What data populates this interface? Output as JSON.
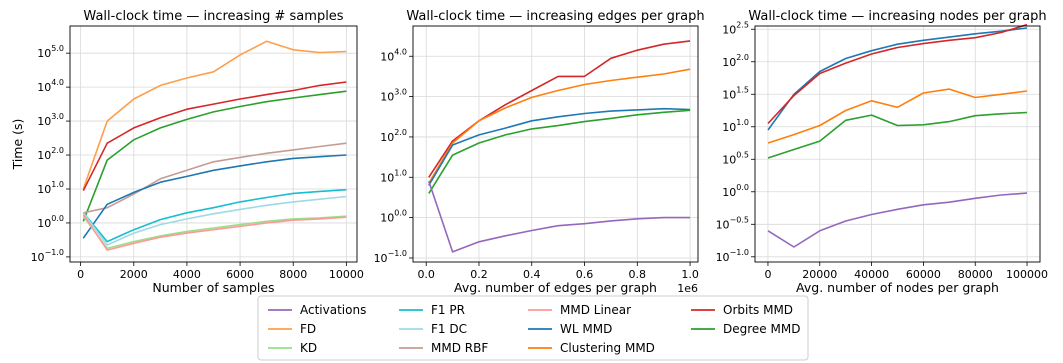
{
  "chart_data": [
    {
      "type": "line",
      "title": "Wall-clock time — increasing # samples",
      "xlabel": "Number of samples",
      "ylabel": "Time (s)",
      "xlim": [
        -400,
        10400
      ],
      "ylim_log10": [
        -1.15,
        5.8
      ],
      "yscale": "log",
      "grid": true,
      "x_ticks": [
        0,
        2000,
        4000,
        6000,
        8000,
        10000
      ],
      "x_tick_labels": [
        "0",
        "2000",
        "4000",
        "6000",
        "8000",
        "10000"
      ],
      "y_ticks_log10": [
        -1,
        0,
        1,
        2,
        3,
        4,
        5
      ],
      "y_tick_labels": [
        {
          "base": "10",
          "exp": "−1.0"
        },
        {
          "base": "10",
          "exp": "0.0"
        },
        {
          "base": "10",
          "exp": "1.0"
        },
        {
          "base": "10",
          "exp": "2.0"
        },
        {
          "base": "10",
          "exp": "3.0"
        },
        {
          "base": "10",
          "exp": "4.0"
        },
        {
          "base": "10",
          "exp": "5.0"
        }
      ],
      "x": [
        100,
        1000,
        2000,
        3000,
        4000,
        5000,
        6000,
        7000,
        8000,
        9000,
        10000
      ],
      "series": [
        {
          "name": "FD",
          "color": "#ff9e4a",
          "log10_values": [
            1.0,
            3.0,
            3.65,
            4.05,
            4.27,
            4.45,
            4.95,
            5.35,
            5.1,
            5.02,
            5.05
          ]
        },
        {
          "name": "Orbits MMD",
          "color": "#d62728",
          "log10_values": [
            0.95,
            2.35,
            2.8,
            3.1,
            3.35,
            3.5,
            3.65,
            3.78,
            3.9,
            4.05,
            4.15
          ]
        },
        {
          "name": "Degree MMD",
          "color": "#2ca02c",
          "log10_values": [
            0.05,
            1.85,
            2.45,
            2.8,
            3.05,
            3.27,
            3.43,
            3.57,
            3.68,
            3.78,
            3.88
          ]
        },
        {
          "name": "MMD RBF",
          "color": "#c49c94",
          "log10_values": [
            0.3,
            0.45,
            0.85,
            1.3,
            1.55,
            1.8,
            1.93,
            2.05,
            2.15,
            2.25,
            2.35
          ]
        },
        {
          "name": "WL MMD",
          "color": "#1f77b4",
          "log10_values": [
            -0.45,
            0.55,
            0.9,
            1.2,
            1.37,
            1.55,
            1.68,
            1.8,
            1.9,
            1.95,
            2.0
          ]
        },
        {
          "name": "F1 PR",
          "color": "#17becf",
          "log10_values": [
            0.3,
            -0.55,
            -0.2,
            0.1,
            0.3,
            0.45,
            0.62,
            0.75,
            0.87,
            0.93,
            0.98
          ]
        },
        {
          "name": "F1 DC",
          "color": "#9edae5",
          "log10_values": [
            0.3,
            -0.65,
            -0.3,
            -0.05,
            0.12,
            0.27,
            0.4,
            0.52,
            0.62,
            0.7,
            0.78
          ]
        },
        {
          "name": "KD",
          "color": "#98df8a",
          "log10_values": [
            0.2,
            -0.75,
            -0.55,
            -0.38,
            -0.25,
            -0.15,
            -0.05,
            0.05,
            0.12,
            0.15,
            0.2
          ]
        },
        {
          "name": "MMD Linear",
          "color": "#ff9896",
          "log10_values": [
            0.25,
            -0.8,
            -0.6,
            -0.42,
            -0.3,
            -0.2,
            -0.1,
            0.0,
            0.08,
            0.12,
            0.17
          ]
        }
      ]
    },
    {
      "type": "line",
      "title": "Wall-clock time — increasing edges per graph",
      "xlabel": "Avg. number of edges per graph",
      "x_multiplier": "1e6",
      "ylabel": "",
      "xlim": [
        -0.05,
        1.03
      ],
      "ylim_log10": [
        -1.1,
        4.75
      ],
      "yscale": "log",
      "grid": true,
      "x_ticks": [
        0.0,
        0.2,
        0.4,
        0.6,
        0.8,
        1.0
      ],
      "x_tick_labels": [
        "0.0",
        "0.2",
        "0.4",
        "0.6",
        "0.8",
        "1.0"
      ],
      "y_ticks_log10": [
        -1,
        0,
        1,
        2,
        3,
        4
      ],
      "y_tick_labels": [
        {
          "base": "10",
          "exp": "−1.0"
        },
        {
          "base": "10",
          "exp": "0.0"
        },
        {
          "base": "10",
          "exp": "1.0"
        },
        {
          "base": "10",
          "exp": "2.0"
        },
        {
          "base": "10",
          "exp": "3.0"
        },
        {
          "base": "10",
          "exp": "4.0"
        }
      ],
      "x": [
        0.01,
        0.1,
        0.2,
        0.3,
        0.4,
        0.5,
        0.6,
        0.7,
        0.8,
        0.9,
        1.0
      ],
      "series": [
        {
          "name": "Orbits MMD",
          "color": "#d62728",
          "log10_values": [
            1.0,
            1.9,
            2.4,
            2.8,
            3.15,
            3.5,
            3.5,
            3.95,
            4.15,
            4.3,
            4.38
          ]
        },
        {
          "name": "Clustering MMD",
          "color": "#ff7f0e",
          "log10_values": [
            0.85,
            1.85,
            2.4,
            2.72,
            2.98,
            3.15,
            3.3,
            3.4,
            3.48,
            3.56,
            3.68
          ]
        },
        {
          "name": "WL MMD",
          "color": "#1f77b4",
          "log10_values": [
            0.8,
            1.8,
            2.05,
            2.22,
            2.4,
            2.5,
            2.58,
            2.64,
            2.67,
            2.7,
            2.68
          ]
        },
        {
          "name": "Degree MMD",
          "color": "#2ca02c",
          "log10_values": [
            0.6,
            1.55,
            1.85,
            2.05,
            2.2,
            2.28,
            2.38,
            2.46,
            2.55,
            2.61,
            2.66
          ]
        },
        {
          "name": "Activations",
          "color": "#9467bd",
          "log10_values": [
            0.9,
            -0.85,
            -0.6,
            -0.45,
            -0.32,
            -0.2,
            -0.15,
            -0.08,
            -0.03,
            0.0,
            0.0
          ]
        }
      ]
    },
    {
      "type": "line",
      "title": "Wall-clock time — increasing nodes per graph",
      "xlabel": "Avg. number of nodes per graph",
      "ylabel": "",
      "xlim": [
        -5000,
        105000
      ],
      "ylim_log10": [
        -1.08,
        2.55
      ],
      "yscale": "log",
      "grid": true,
      "x_ticks": [
        0,
        20000,
        40000,
        60000,
        80000,
        100000
      ],
      "x_tick_labels": [
        "0",
        "20000",
        "40000",
        "60000",
        "80000",
        "100000"
      ],
      "y_ticks_log10": [
        -1.0,
        -0.5,
        0.0,
        0.5,
        1.0,
        1.5,
        2.0,
        2.5
      ],
      "y_tick_labels": [
        {
          "base": "10",
          "exp": "−1.0"
        },
        {
          "base": "10",
          "exp": "−0.5"
        },
        {
          "base": "10",
          "exp": "0.0"
        },
        {
          "base": "10",
          "exp": "0.5"
        },
        {
          "base": "10",
          "exp": "1.0"
        },
        {
          "base": "10",
          "exp": "1.5"
        },
        {
          "base": "10",
          "exp": "2.0"
        },
        {
          "base": "10",
          "exp": "2.5"
        }
      ],
      "x": [
        0,
        10000,
        20000,
        30000,
        40000,
        50000,
        60000,
        70000,
        80000,
        90000,
        100000
      ],
      "series": [
        {
          "name": "WL MMD",
          "color": "#1f77b4",
          "log10_values": [
            0.95,
            1.5,
            1.85,
            2.05,
            2.17,
            2.27,
            2.33,
            2.38,
            2.43,
            2.47,
            2.52
          ]
        },
        {
          "name": "Orbits MMD",
          "color": "#d62728",
          "log10_values": [
            1.05,
            1.48,
            1.82,
            1.98,
            2.12,
            2.22,
            2.28,
            2.33,
            2.37,
            2.45,
            2.57
          ]
        },
        {
          "name": "Clustering MMD",
          "color": "#ff7f0e",
          "log10_values": [
            0.75,
            0.88,
            1.02,
            1.25,
            1.4,
            1.3,
            1.52,
            1.58,
            1.45,
            1.5,
            1.55
          ]
        },
        {
          "name": "Degree MMD",
          "color": "#2ca02c",
          "log10_values": [
            0.52,
            0.65,
            0.78,
            1.1,
            1.18,
            1.02,
            1.03,
            1.08,
            1.17,
            1.2,
            1.22
          ]
        },
        {
          "name": "Activations",
          "color": "#9467bd",
          "log10_values": [
            -0.6,
            -0.85,
            -0.6,
            -0.45,
            -0.35,
            -0.27,
            -0.2,
            -0.16,
            -0.1,
            -0.05,
            -0.02
          ]
        }
      ]
    }
  ],
  "legend": {
    "placement": "bottom-center",
    "entries": [
      {
        "name": "Activations",
        "color": "#9467bd"
      },
      {
        "name": "FD",
        "color": "#ff9e4a"
      },
      {
        "name": "KD",
        "color": "#98df8a"
      },
      {
        "name": "F1 PR",
        "color": "#17becf"
      },
      {
        "name": "F1 DC",
        "color": "#9edae5"
      },
      {
        "name": "MMD RBF",
        "color": "#c49c94"
      },
      {
        "name": "MMD Linear",
        "color": "#ff9896"
      },
      {
        "name": "WL MMD",
        "color": "#1f77b4"
      },
      {
        "name": "Clustering MMD",
        "color": "#ff7f0e"
      },
      {
        "name": "Orbits MMD",
        "color": "#d62728"
      },
      {
        "name": "Degree MMD",
        "color": "#2ca02c"
      }
    ]
  }
}
